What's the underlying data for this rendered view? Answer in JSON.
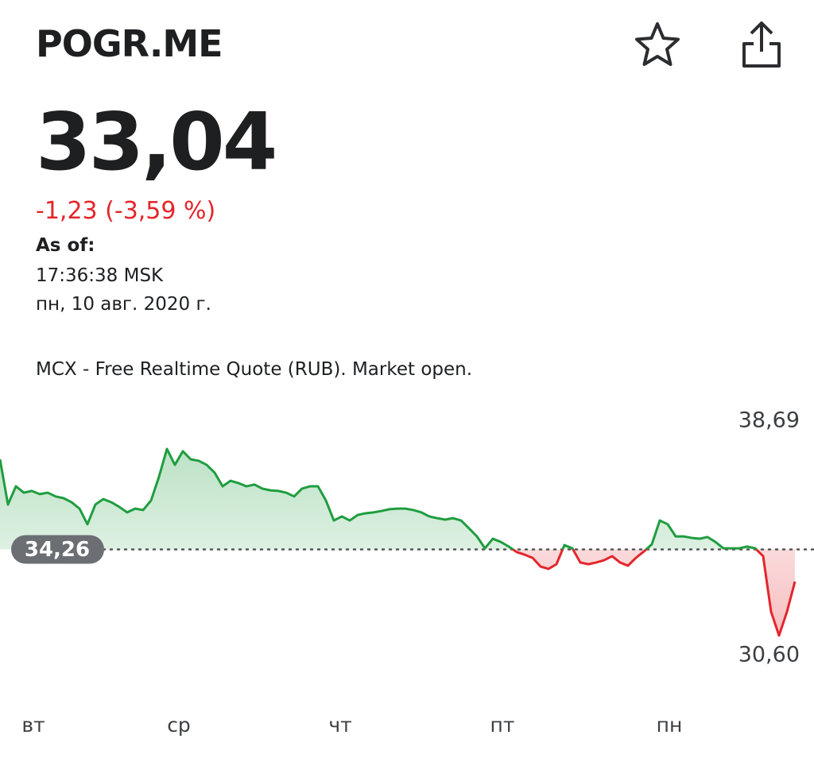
{
  "header": {
    "title": "POGR.ME",
    "price": "33,04",
    "change": "-1,23 (-3,59 %)",
    "as_of": "As of:",
    "time": "17:36:38 MSK",
    "date": "пн, 10 авг. 2020 г.",
    "source": "MCX - Free Realtime Quote (RUB). Market open."
  },
  "chart_data": {
    "type": "line",
    "up_color": "#1f9d3f",
    "down_color": "#e3262c",
    "values": [
      37.37,
      35.81,
      36.44,
      36.22,
      36.28,
      36.17,
      36.22,
      36.09,
      36.03,
      35.89,
      35.67,
      35.13,
      35.81,
      36.0,
      35.89,
      35.73,
      35.54,
      35.67,
      35.62,
      35.95,
      36.77,
      37.73,
      37.18,
      37.65,
      37.37,
      37.32,
      37.18,
      36.91,
      36.44,
      36.63,
      36.55,
      36.44,
      36.5,
      36.36,
      36.3,
      36.28,
      36.22,
      36.09,
      36.36,
      36.44,
      36.44,
      35.95,
      35.26,
      35.4,
      35.26,
      35.45,
      35.51,
      35.54,
      35.59,
      35.65,
      35.67,
      35.67,
      35.62,
      35.54,
      35.4,
      35.34,
      35.29,
      35.34,
      35.26,
      34.99,
      34.71,
      34.3,
      34.63,
      34.52,
      34.36,
      34.17,
      34.08,
      33.97,
      33.67,
      33.59,
      33.75,
      34.41,
      34.3,
      33.81,
      33.75,
      33.81,
      33.89,
      34.03,
      33.81,
      33.7,
      33.97,
      34.19,
      34.44,
      35.26,
      35.13,
      34.71,
      34.71,
      34.66,
      34.63,
      34.69,
      34.52,
      34.3,
      34.3,
      34.3,
      34.36,
      34.3,
      34.03,
      32.11,
      31.29,
      32.11,
      33.15
    ],
    "previous_close": {
      "value": 34.26,
      "label": "34,26"
    },
    "ylim": [
      30.6,
      38.69
    ],
    "yticks": [
      {
        "value": 38.69,
        "label": "38,69"
      },
      {
        "value": 30.6,
        "label": "30,60"
      }
    ],
    "xlim": [
      0,
      100
    ],
    "xticks": [
      {
        "value": 4.2,
        "label": "вт"
      },
      {
        "value": 22.5,
        "label": "ср"
      },
      {
        "value": 42.8,
        "label": "чт"
      },
      {
        "value": 63.2,
        "label": "пт"
      },
      {
        "value": 84.2,
        "label": "пн"
      }
    ]
  }
}
